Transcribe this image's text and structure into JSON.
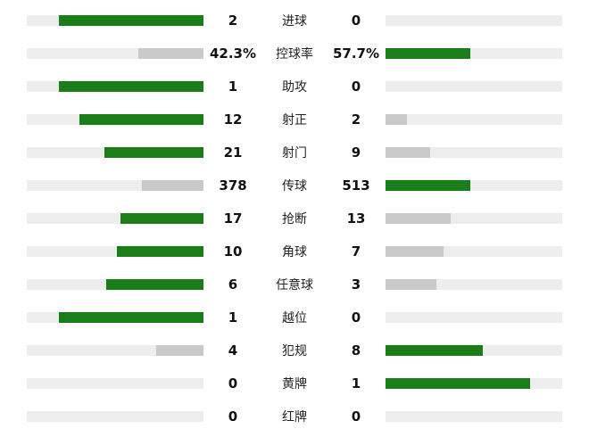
{
  "colors": {
    "green": "#1a7d1a",
    "gray": "#c9c9c9",
    "track": "#ededed",
    "text": "#111111",
    "background": "#ffffff"
  },
  "rows": [
    {
      "label": "进球",
      "left": {
        "text": "2",
        "pct": 82,
        "tone": "green"
      },
      "right": {
        "text": "0",
        "pct": 0,
        "tone": "none"
      }
    },
    {
      "label": "控球率",
      "left": {
        "text": "42.3%",
        "pct": 37,
        "tone": "gray"
      },
      "right": {
        "text": "57.7%",
        "pct": 48,
        "tone": "green"
      }
    },
    {
      "label": "助攻",
      "left": {
        "text": "1",
        "pct": 82,
        "tone": "green"
      },
      "right": {
        "text": "0",
        "pct": 0,
        "tone": "none"
      }
    },
    {
      "label": "射正",
      "left": {
        "text": "12",
        "pct": 70,
        "tone": "green"
      },
      "right": {
        "text": "2",
        "pct": 12,
        "tone": "gray"
      }
    },
    {
      "label": "射门",
      "left": {
        "text": "21",
        "pct": 56,
        "tone": "green"
      },
      "right": {
        "text": "9",
        "pct": 25,
        "tone": "gray"
      }
    },
    {
      "label": "传球",
      "left": {
        "text": "378",
        "pct": 35,
        "tone": "gray"
      },
      "right": {
        "text": "513",
        "pct": 48,
        "tone": "green"
      }
    },
    {
      "label": "抢断",
      "left": {
        "text": "17",
        "pct": 47,
        "tone": "green"
      },
      "right": {
        "text": "13",
        "pct": 37,
        "tone": "gray"
      }
    },
    {
      "label": "角球",
      "left": {
        "text": "10",
        "pct": 49,
        "tone": "green"
      },
      "right": {
        "text": "7",
        "pct": 33,
        "tone": "gray"
      }
    },
    {
      "label": "任意球",
      "left": {
        "text": "6",
        "pct": 55,
        "tone": "green"
      },
      "right": {
        "text": "3",
        "pct": 29,
        "tone": "gray"
      }
    },
    {
      "label": "越位",
      "left": {
        "text": "1",
        "pct": 82,
        "tone": "green"
      },
      "right": {
        "text": "0",
        "pct": 0,
        "tone": "none"
      }
    },
    {
      "label": "犯规",
      "left": {
        "text": "4",
        "pct": 27,
        "tone": "gray"
      },
      "right": {
        "text": "8",
        "pct": 55,
        "tone": "green"
      }
    },
    {
      "label": "黄牌",
      "left": {
        "text": "0",
        "pct": 0,
        "tone": "none"
      },
      "right": {
        "text": "1",
        "pct": 82,
        "tone": "green"
      }
    },
    {
      "label": "红牌",
      "left": {
        "text": "0",
        "pct": 0,
        "tone": "none"
      },
      "right": {
        "text": "0",
        "pct": 0,
        "tone": "none"
      }
    }
  ],
  "chart_data": {
    "type": "bar",
    "orientation": "horizontal-paired",
    "title": "",
    "categories": [
      "进球",
      "控球率",
      "助攻",
      "射正",
      "射门",
      "传球",
      "抢断",
      "角球",
      "任意球",
      "越位",
      "犯规",
      "黄牌",
      "红牌"
    ],
    "series": [
      {
        "name": "left-team",
        "values": [
          2,
          42.3,
          1,
          12,
          21,
          378,
          17,
          10,
          6,
          1,
          4,
          0,
          0
        ]
      },
      {
        "name": "right-team",
        "values": [
          0,
          57.7,
          0,
          2,
          9,
          513,
          13,
          7,
          3,
          0,
          8,
          1,
          0
        ]
      }
    ],
    "percent_rows": [
      "控球率"
    ],
    "highlight_rule": "higher value bar is green, lower value bar is gray, zero value shows empty track",
    "legend": "none",
    "grid": false
  }
}
